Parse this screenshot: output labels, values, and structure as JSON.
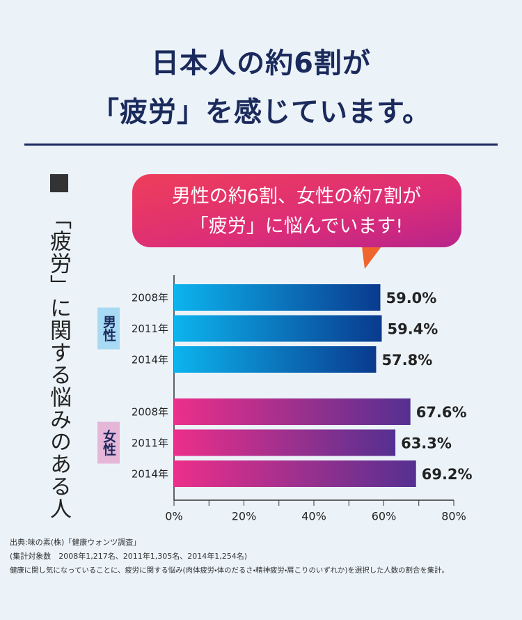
{
  "chart_data": {
    "type": "bar",
    "orientation": "horizontal",
    "title_lines": [
      "日本人の約6割が",
      "「疲労」を感じています。"
    ],
    "side_label": "「疲労」に関する悩みのある人",
    "callout_lines": [
      "男性の約6割、女性の約7割が",
      "「疲労」に悩んでいます!"
    ],
    "categories": [
      "2008年",
      "2011年",
      "2014年"
    ],
    "series": [
      {
        "name": "男性",
        "color": "#0cb4ee",
        "color_end": "#0a3a8e",
        "label_bg": "#a9daf3",
        "label_color": "#1b2a5c",
        "values": [
          59.0,
          59.4,
          57.8
        ],
        "value_labels": [
          "59.0%",
          "59.4%",
          "57.8%"
        ]
      },
      {
        "name": "女性",
        "color": "#ec2f8a",
        "color_end": "#553091",
        "label_bg": "#e6b6d9",
        "label_color": "#1b2a5c",
        "values": [
          67.6,
          63.3,
          69.2
        ],
        "value_labels": [
          "67.6%",
          "63.3%",
          "69.2%"
        ]
      }
    ],
    "xlim": [
      0,
      80
    ],
    "xticks": [
      {
        "value": 0,
        "label": "0%"
      },
      {
        "value": 20,
        "label": "20%"
      },
      {
        "value": 40,
        "label": "40%"
      },
      {
        "value": 60,
        "label": "60%"
      },
      {
        "value": 80,
        "label": "80%"
      }
    ],
    "xminor_ticks": [
      10,
      30,
      50,
      70
    ],
    "notes": [
      "出典:味の素(株)「健康ウォンツ調査」",
      "(集計対象数　2008年1,217名、2011年1,305名、2014年1,254名)",
      "健康に関し気になっていることに、疲労に関する悩み(肉体疲労・体のだるさ・精神疲労・肩こりのいずれか)を選択した人数の割合を集計。"
    ]
  }
}
